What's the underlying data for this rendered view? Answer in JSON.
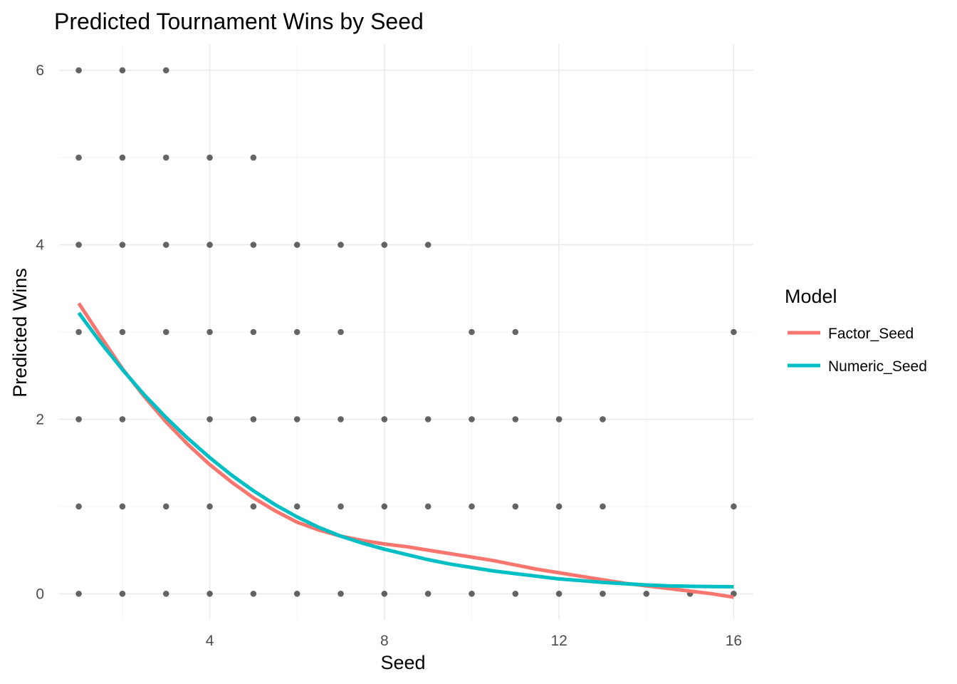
{
  "chart_data": {
    "type": "scatter",
    "title": "Predicted Tournament Wins by Seed",
    "xlabel": "Seed",
    "ylabel": "Predicted Wins",
    "xlim": [
      0.55,
      16.45
    ],
    "ylim": [
      -0.3,
      6.3
    ],
    "x_ticks": [
      4,
      8,
      12,
      16
    ],
    "y_ticks": [
      0,
      2,
      4,
      6
    ],
    "grid": true,
    "legend": {
      "title": "Model",
      "position": "right"
    },
    "points": [
      {
        "x": 1,
        "y": 0
      },
      {
        "x": 1,
        "y": 1
      },
      {
        "x": 1,
        "y": 2
      },
      {
        "x": 1,
        "y": 3
      },
      {
        "x": 1,
        "y": 4
      },
      {
        "x": 1,
        "y": 5
      },
      {
        "x": 1,
        "y": 6
      },
      {
        "x": 2,
        "y": 0
      },
      {
        "x": 2,
        "y": 1
      },
      {
        "x": 2,
        "y": 2
      },
      {
        "x": 2,
        "y": 3
      },
      {
        "x": 2,
        "y": 4
      },
      {
        "x": 2,
        "y": 5
      },
      {
        "x": 2,
        "y": 6
      },
      {
        "x": 3,
        "y": 0
      },
      {
        "x": 3,
        "y": 1
      },
      {
        "x": 3,
        "y": 2
      },
      {
        "x": 3,
        "y": 3
      },
      {
        "x": 3,
        "y": 4
      },
      {
        "x": 3,
        "y": 5
      },
      {
        "x": 3,
        "y": 6
      },
      {
        "x": 4,
        "y": 0
      },
      {
        "x": 4,
        "y": 1
      },
      {
        "x": 4,
        "y": 2
      },
      {
        "x": 4,
        "y": 3
      },
      {
        "x": 4,
        "y": 4
      },
      {
        "x": 4,
        "y": 5
      },
      {
        "x": 5,
        "y": 0
      },
      {
        "x": 5,
        "y": 1
      },
      {
        "x": 5,
        "y": 2
      },
      {
        "x": 5,
        "y": 3
      },
      {
        "x": 5,
        "y": 4
      },
      {
        "x": 5,
        "y": 5
      },
      {
        "x": 6,
        "y": 0
      },
      {
        "x": 6,
        "y": 1
      },
      {
        "x": 6,
        "y": 2
      },
      {
        "x": 6,
        "y": 3
      },
      {
        "x": 6,
        "y": 4
      },
      {
        "x": 7,
        "y": 0
      },
      {
        "x": 7,
        "y": 1
      },
      {
        "x": 7,
        "y": 2
      },
      {
        "x": 7,
        "y": 3
      },
      {
        "x": 7,
        "y": 4
      },
      {
        "x": 8,
        "y": 0
      },
      {
        "x": 8,
        "y": 1
      },
      {
        "x": 8,
        "y": 2
      },
      {
        "x": 8,
        "y": 4
      },
      {
        "x": 9,
        "y": 0
      },
      {
        "x": 9,
        "y": 1
      },
      {
        "x": 9,
        "y": 2
      },
      {
        "x": 9,
        "y": 4
      },
      {
        "x": 10,
        "y": 0
      },
      {
        "x": 10,
        "y": 1
      },
      {
        "x": 10,
        "y": 2
      },
      {
        "x": 10,
        "y": 3
      },
      {
        "x": 11,
        "y": 0
      },
      {
        "x": 11,
        "y": 1
      },
      {
        "x": 11,
        "y": 2
      },
      {
        "x": 11,
        "y": 3
      },
      {
        "x": 12,
        "y": 0
      },
      {
        "x": 12,
        "y": 1
      },
      {
        "x": 12,
        "y": 2
      },
      {
        "x": 13,
        "y": 0
      },
      {
        "x": 13,
        "y": 1
      },
      {
        "x": 13,
        "y": 2
      },
      {
        "x": 14,
        "y": 0
      },
      {
        "x": 15,
        "y": 0
      },
      {
        "x": 16,
        "y": 0
      },
      {
        "x": 16,
        "y": 1
      },
      {
        "x": 16,
        "y": 3
      }
    ],
    "series": [
      {
        "name": "Factor_Seed",
        "color": "#F8766D",
        "x": [
          1,
          1.5,
          2,
          2.5,
          3,
          3.5,
          4,
          4.5,
          5,
          5.5,
          6,
          6.5,
          7,
          7.5,
          8,
          8.5,
          9,
          9.5,
          10,
          10.5,
          11,
          11.5,
          12,
          12.5,
          13,
          13.5,
          14,
          14.5,
          15,
          15.5,
          16
        ],
        "values": [
          3.33,
          2.95,
          2.58,
          2.26,
          1.97,
          1.71,
          1.48,
          1.28,
          1.1,
          0.95,
          0.82,
          0.73,
          0.66,
          0.61,
          0.57,
          0.54,
          0.5,
          0.46,
          0.42,
          0.38,
          0.33,
          0.28,
          0.24,
          0.2,
          0.16,
          0.12,
          0.09,
          0.06,
          0.03,
          0.0,
          -0.04
        ]
      },
      {
        "name": "Numeric_Seed",
        "color": "#00BFC4",
        "x": [
          1,
          1.5,
          2,
          2.5,
          3,
          3.5,
          4,
          4.5,
          5,
          5.5,
          6,
          6.5,
          7,
          7.5,
          8,
          8.5,
          9,
          9.5,
          10,
          10.5,
          11,
          11.5,
          12,
          12.5,
          13,
          13.5,
          14,
          14.5,
          15,
          15.5,
          16
        ],
        "values": [
          3.22,
          2.88,
          2.57,
          2.28,
          2.02,
          1.78,
          1.56,
          1.36,
          1.18,
          1.02,
          0.88,
          0.76,
          0.66,
          0.58,
          0.51,
          0.45,
          0.39,
          0.34,
          0.3,
          0.26,
          0.23,
          0.2,
          0.17,
          0.15,
          0.13,
          0.115,
          0.1,
          0.09,
          0.085,
          0.082,
          0.08
        ]
      }
    ]
  }
}
